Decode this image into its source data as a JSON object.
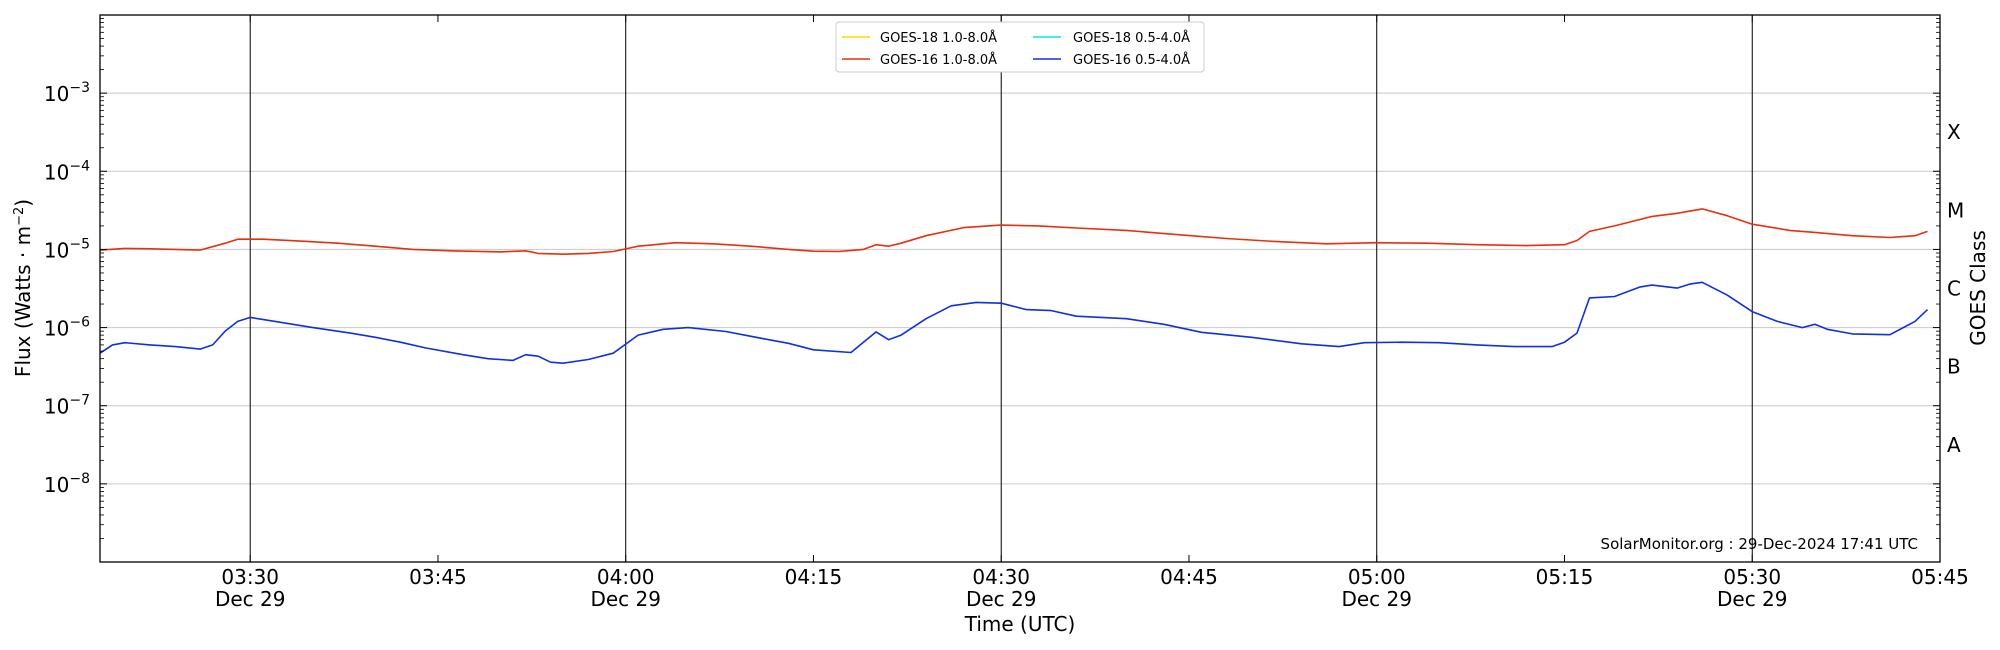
{
  "chart_data": {
    "type": "line",
    "xlabel": "Time (UTC)",
    "ylabel_main": "Flux (Watts · m",
    "ylabel_sup": "−2",
    "ylabel_tail": ")",
    "right_label": "GOES Class",
    "credit": "SolarMonitor.org : 29-Dec-2024 17:41 UTC",
    "x_range": [
      "03:18",
      "05:45"
    ],
    "y_scale": "log",
    "ylim": [
      1e-09,
      0.01
    ],
    "grid": true,
    "legend_position": "top-center",
    "x_ticks": [
      {
        "time": "03:30",
        "line1": "03:30",
        "line2": "Dec 29",
        "major": true
      },
      {
        "time": "03:45",
        "line1": "03:45",
        "line2": "",
        "major": false
      },
      {
        "time": "04:00",
        "line1": "04:00",
        "line2": "Dec 29",
        "major": true
      },
      {
        "time": "04:15",
        "line1": "04:15",
        "line2": "",
        "major": false
      },
      {
        "time": "04:30",
        "line1": "04:30",
        "line2": "Dec 29",
        "major": true
      },
      {
        "time": "04:45",
        "line1": "04:45",
        "line2": "",
        "major": false
      },
      {
        "time": "05:00",
        "line1": "05:00",
        "line2": "Dec 29",
        "major": true
      },
      {
        "time": "05:15",
        "line1": "05:15",
        "line2": "",
        "major": false
      },
      {
        "time": "05:30",
        "line1": "05:30",
        "line2": "Dec 29",
        "major": true
      },
      {
        "time": "05:45",
        "line1": "05:45",
        "line2": "",
        "major": false
      }
    ],
    "y_ticks": [
      {
        "exp": -8,
        "label": "10",
        "sup": "−8"
      },
      {
        "exp": -7,
        "label": "10",
        "sup": "−7"
      },
      {
        "exp": -6,
        "label": "10",
        "sup": "−6"
      },
      {
        "exp": -5,
        "label": "10",
        "sup": "−5"
      },
      {
        "exp": -4,
        "label": "10",
        "sup": "−4"
      },
      {
        "exp": -3,
        "label": "10",
        "sup": "−3"
      }
    ],
    "goes_classes": [
      {
        "label": "A",
        "exp": -7.5
      },
      {
        "label": "B",
        "exp": -6.5
      },
      {
        "label": "C",
        "exp": -5.5
      },
      {
        "label": "M",
        "exp": -4.5
      },
      {
        "label": "X",
        "exp": -3.5
      }
    ],
    "series": [
      {
        "name": "GOES-18 1.0-8.0Å",
        "color": "#ffd700",
        "points": []
      },
      {
        "name": "GOES-18 0.5-4.0Å",
        "color": "#00e5ee",
        "points": []
      },
      {
        "name": "GOES-16 1.0-8.0Å",
        "color": "#e8300a",
        "points": [
          [
            "03:18",
            9.8e-06
          ],
          [
            "03:20",
            1.03e-05
          ],
          [
            "03:22",
            1.02e-05
          ],
          [
            "03:24",
            1e-05
          ],
          [
            "03:26",
            9.8e-06
          ],
          [
            "03:28",
            1.2e-05
          ],
          [
            "03:29",
            1.35e-05
          ],
          [
            "03:31",
            1.35e-05
          ],
          [
            "03:34",
            1.28e-05
          ],
          [
            "03:37",
            1.2e-05
          ],
          [
            "03:40",
            1.1e-05
          ],
          [
            "03:43",
            1e-05
          ],
          [
            "03:46",
            9.6e-06
          ],
          [
            "03:50",
            9.3e-06
          ],
          [
            "03:52",
            9.6e-06
          ],
          [
            "03:53",
            8.9e-06
          ],
          [
            "03:55",
            8.7e-06
          ],
          [
            "03:57",
            8.9e-06
          ],
          [
            "03:59",
            9.4e-06
          ],
          [
            "04:01",
            1.1e-05
          ],
          [
            "04:04",
            1.22e-05
          ],
          [
            "04:07",
            1.18e-05
          ],
          [
            "04:10",
            1.1e-05
          ],
          [
            "04:13",
            1e-05
          ],
          [
            "04:15",
            9.5e-06
          ],
          [
            "04:17",
            9.4e-06
          ],
          [
            "04:19",
            1e-05
          ],
          [
            "04:20",
            1.15e-05
          ],
          [
            "04:21",
            1.1e-05
          ],
          [
            "04:22",
            1.2e-05
          ],
          [
            "04:24",
            1.5e-05
          ],
          [
            "04:27",
            1.9e-05
          ],
          [
            "04:30",
            2.05e-05
          ],
          [
            "04:33",
            2e-05
          ],
          [
            "04:36",
            1.88e-05
          ],
          [
            "04:40",
            1.75e-05
          ],
          [
            "04:44",
            1.55e-05
          ],
          [
            "04:48",
            1.38e-05
          ],
          [
            "04:52",
            1.26e-05
          ],
          [
            "04:56",
            1.18e-05
          ],
          [
            "05:00",
            1.22e-05
          ],
          [
            "05:04",
            1.2e-05
          ],
          [
            "05:08",
            1.15e-05
          ],
          [
            "05:12",
            1.12e-05
          ],
          [
            "05:15",
            1.15e-05
          ],
          [
            "05:16",
            1.3e-05
          ],
          [
            "05:17",
            1.7e-05
          ],
          [
            "05:19",
            2e-05
          ],
          [
            "05:22",
            2.65e-05
          ],
          [
            "05:24",
            2.9e-05
          ],
          [
            "05:26",
            3.3e-05
          ],
          [
            "05:28",
            2.7e-05
          ],
          [
            "05:30",
            2.1e-05
          ],
          [
            "05:33",
            1.75e-05
          ],
          [
            "05:35",
            1.65e-05
          ],
          [
            "05:38",
            1.5e-05
          ],
          [
            "05:41",
            1.42e-05
          ],
          [
            "05:43",
            1.5e-05
          ],
          [
            "05:44",
            1.7e-05
          ]
        ]
      },
      {
        "name": "GOES-16 0.5-4.0Å",
        "color": "#1030e0",
        "points": [
          [
            "03:18",
            4.7e-07
          ],
          [
            "03:19",
            6e-07
          ],
          [
            "03:20",
            6.4e-07
          ],
          [
            "03:22",
            6e-07
          ],
          [
            "03:24",
            5.7e-07
          ],
          [
            "03:26",
            5.3e-07
          ],
          [
            "03:27",
            6e-07
          ],
          [
            "03:28",
            9e-07
          ],
          [
            "03:29",
            1.2e-06
          ],
          [
            "03:30",
            1.35e-06
          ],
          [
            "03:32",
            1.2e-06
          ],
          [
            "03:35",
            1e-06
          ],
          [
            "03:38",
            8.5e-07
          ],
          [
            "03:40",
            7.5e-07
          ],
          [
            "03:42",
            6.5e-07
          ],
          [
            "03:44",
            5.5e-07
          ],
          [
            "03:47",
            4.5e-07
          ],
          [
            "03:49",
            4e-07
          ],
          [
            "03:51",
            3.8e-07
          ],
          [
            "03:52",
            4.5e-07
          ],
          [
            "03:53",
            4.3e-07
          ],
          [
            "03:54",
            3.6e-07
          ],
          [
            "03:55",
            3.5e-07
          ],
          [
            "03:57",
            3.9e-07
          ],
          [
            "03:59",
            4.7e-07
          ],
          [
            "04:01",
            8e-07
          ],
          [
            "04:03",
            9.5e-07
          ],
          [
            "04:05",
            1e-06
          ],
          [
            "04:08",
            8.9e-07
          ],
          [
            "04:11",
            7.2e-07
          ],
          [
            "04:13",
            6.3e-07
          ],
          [
            "04:15",
            5.2e-07
          ],
          [
            "04:18",
            4.8e-07
          ],
          [
            "04:20",
            8.8e-07
          ],
          [
            "04:21",
            7e-07
          ],
          [
            "04:22",
            8e-07
          ],
          [
            "04:24",
            1.3e-06
          ],
          [
            "04:26",
            1.9e-06
          ],
          [
            "04:28",
            2.1e-06
          ],
          [
            "04:30",
            2.05e-06
          ],
          [
            "04:32",
            1.7e-06
          ],
          [
            "04:34",
            1.65e-06
          ],
          [
            "04:36",
            1.4e-06
          ],
          [
            "04:38",
            1.35e-06
          ],
          [
            "04:40",
            1.3e-06
          ],
          [
            "04:43",
            1.1e-06
          ],
          [
            "04:46",
            8.7e-07
          ],
          [
            "04:50",
            7.5e-07
          ],
          [
            "04:54",
            6.2e-07
          ],
          [
            "04:57",
            5.7e-07
          ],
          [
            "04:59",
            6.4e-07
          ],
          [
            "05:02",
            6.5e-07
          ],
          [
            "05:05",
            6.4e-07
          ],
          [
            "05:08",
            6e-07
          ],
          [
            "05:11",
            5.7e-07
          ],
          [
            "05:14",
            5.7e-07
          ],
          [
            "05:15",
            6.5e-07
          ],
          [
            "05:16",
            8.5e-07
          ],
          [
            "05:17",
            2.4e-06
          ],
          [
            "05:19",
            2.5e-06
          ],
          [
            "05:21",
            3.3e-06
          ],
          [
            "05:22",
            3.5e-06
          ],
          [
            "05:24",
            3.2e-06
          ],
          [
            "05:25",
            3.6e-06
          ],
          [
            "05:26",
            3.8e-06
          ],
          [
            "05:28",
            2.6e-06
          ],
          [
            "05:30",
            1.6e-06
          ],
          [
            "05:32",
            1.2e-06
          ],
          [
            "05:34",
            1e-06
          ],
          [
            "05:35",
            1.1e-06
          ],
          [
            "05:36",
            9.5e-07
          ],
          [
            "05:38",
            8.3e-07
          ],
          [
            "05:41",
            8.1e-07
          ],
          [
            "05:43",
            1.2e-06
          ],
          [
            "05:44",
            1.7e-06
          ]
        ]
      }
    ]
  }
}
